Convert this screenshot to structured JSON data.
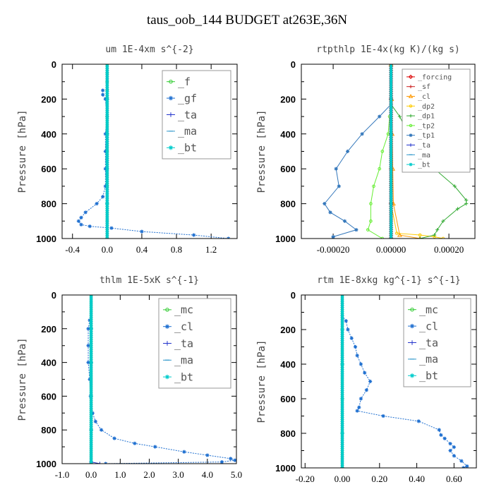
{
  "title": "taus_oob_144  BUDGET at263E,36N",
  "chart_data": [
    {
      "type": "line",
      "title": "um   1E-4xm s^{-2}",
      "ylabel": "Pressure [hPa]",
      "ylim": [
        1000,
        0
      ],
      "yticks": [
        0,
        200,
        400,
        600,
        800,
        1000
      ],
      "xlim": [
        -0.52,
        1.5
      ],
      "xticks": [
        -0.4,
        0.0,
        0.4,
        0.8,
        1.2
      ],
      "xtick_labels": [
        "-0.4",
        "0.0",
        "0.4",
        "0.8",
        "1.2"
      ],
      "legend": "top-right",
      "series": [
        {
          "name": "_f",
          "color": "#33cc33",
          "marker": "circle",
          "p": [
            0,
            50,
            100,
            150,
            200,
            300,
            400,
            500,
            600,
            700,
            800,
            900,
            1000
          ],
          "values": [
            0,
            0,
            0,
            0,
            0,
            0,
            0,
            0,
            0,
            0,
            0,
            0,
            0
          ]
        },
        {
          "name": "_gf",
          "color": "#1e6fd0",
          "marker": "star",
          "p": [
            150,
            175,
            200,
            300,
            400,
            500,
            600,
            700,
            760,
            800,
            850,
            880,
            900,
            920,
            930,
            940,
            960,
            980,
            1000
          ],
          "values": [
            -0.05,
            -0.05,
            -0.02,
            0,
            -0.02,
            -0.02,
            -0.02,
            -0.02,
            -0.05,
            -0.12,
            -0.25,
            -0.3,
            -0.33,
            -0.3,
            -0.2,
            0.05,
            0.4,
            1.0,
            1.4
          ]
        },
        {
          "name": "_ta",
          "color": "#2233cc",
          "marker": "plus",
          "p": [
            0,
            200,
            400,
            600,
            800,
            1000
          ],
          "values": [
            0,
            0,
            0,
            0,
            0,
            0
          ]
        },
        {
          "name": "_ma",
          "color": "#3399cc",
          "marker": "dash",
          "p": [
            0,
            200,
            400,
            600,
            800,
            1000
          ],
          "values": [
            0,
            0,
            0,
            0,
            0,
            0
          ]
        },
        {
          "name": "_bt",
          "color": "#00cccc",
          "marker": "star",
          "p": [
            0,
            200,
            400,
            600,
            800,
            1000
          ],
          "values": [
            0,
            0,
            0,
            0,
            0,
            0
          ]
        }
      ]
    },
    {
      "type": "line",
      "title": "rtpthlp  1E-4x(kg K)/(kg s)",
      "ylabel": "Pressure [hPa]",
      "ylim": [
        1000,
        0
      ],
      "yticks": [
        0,
        200,
        400,
        600,
        800,
        1000
      ],
      "xlim": [
        -0.00031,
        0.00029
      ],
      "xticks": [
        -0.0002,
        0.0,
        0.0002
      ],
      "xtick_labels": [
        "-0.00020",
        "0.00000",
        "0.00020"
      ],
      "legend": "top-right",
      "series": [
        {
          "name": "_forcing",
          "color": "#dd0000",
          "marker": "diamond",
          "p": [
            0,
            200,
            400,
            600,
            800,
            1000
          ],
          "values": [
            0,
            0,
            0,
            0,
            0,
            0
          ]
        },
        {
          "name": "_sf",
          "color": "#cc2222",
          "marker": "plus",
          "p": [
            0,
            200,
            400,
            600,
            800,
            1000
          ],
          "values": [
            0,
            0,
            0,
            0,
            0,
            0
          ]
        },
        {
          "name": "_cl",
          "color": "#ff9900",
          "marker": "triangle",
          "p": [
            0,
            200,
            400,
            600,
            800,
            980,
            1000
          ],
          "values": [
            0,
            2e-06,
            4e-06,
            6e-06,
            8e-06,
            3e-05,
            0.0001
          ]
        },
        {
          "name": "_dp2",
          "color": "#ffcc00",
          "marker": "circle",
          "p": [
            0,
            200,
            400,
            600,
            800,
            970,
            980,
            990,
            1000
          ],
          "values": [
            0,
            0,
            0,
            0,
            0,
            2e-05,
            0.0001,
            0.00015,
            0.00018
          ]
        },
        {
          "name": "_dp1",
          "color": "#33aa33",
          "marker": "plus",
          "p": [
            230,
            300,
            400,
            500,
            600,
            700,
            780,
            800,
            830,
            900,
            950,
            980,
            1000
          ],
          "values": [
            0,
            3e-05,
            6e-05,
            0.0001,
            0.00015,
            0.00022,
            0.00026,
            0.00026,
            0.00023,
            0.00018,
            0.00016,
            0.00015,
            0.0001
          ]
        },
        {
          "name": "_tp2",
          "color": "#66ee33",
          "marker": "circle",
          "p": [
            300,
            400,
            500,
            600,
            700,
            800,
            900,
            950,
            1000
          ],
          "values": [
            -5e-06,
            -1e-05,
            -3e-05,
            -4e-05,
            -6e-05,
            -7e-05,
            -7e-05,
            -8e-05,
            -3e-05
          ]
        },
        {
          "name": "_tp1",
          "color": "#3377bb",
          "marker": "star",
          "p": [
            230,
            300,
            400,
            500,
            600,
            700,
            800,
            850,
            900,
            950,
            990,
            1000
          ],
          "values": [
            0,
            -4e-05,
            -0.0001,
            -0.00015,
            -0.00019,
            -0.00018,
            -0.00023,
            -0.00021,
            -0.00016,
            -0.00012,
            -0.0002,
            -0.0002
          ]
        },
        {
          "name": "_ta",
          "color": "#2233cc",
          "marker": "plus",
          "p": [
            0,
            200,
            400,
            600,
            800,
            1000
          ],
          "values": [
            0,
            0,
            0,
            0,
            0,
            0
          ]
        },
        {
          "name": "_ma",
          "color": "#3399cc",
          "marker": "dash",
          "p": [
            0,
            200,
            400,
            600,
            800,
            1000
          ],
          "values": [
            0,
            0,
            0,
            0,
            0,
            0
          ]
        },
        {
          "name": "_bt",
          "color": "#00cccc",
          "marker": "star",
          "p": [
            0,
            200,
            400,
            600,
            800,
            1000
          ],
          "values": [
            0,
            0,
            0,
            0,
            0,
            0
          ]
        }
      ]
    },
    {
      "type": "line",
      "title": "thlm  1E-5xK s^{-1}",
      "ylabel": "Pressure [hPa]",
      "ylim": [
        1000,
        0
      ],
      "yticks": [
        0,
        200,
        400,
        600,
        800,
        1000
      ],
      "xlim": [
        -1.0,
        5.0
      ],
      "xticks": [
        -1.0,
        0.0,
        1.0,
        2.0,
        3.0,
        4.0,
        5.0
      ],
      "xtick_labels": [
        "-1.0",
        "0.0",
        "1.0",
        "2.0",
        "3.0",
        "4.0",
        "5.0"
      ],
      "legend": "top-right",
      "series": [
        {
          "name": "_mc",
          "color": "#33cc33",
          "marker": "circle",
          "p": [
            0,
            200,
            400,
            600,
            800,
            1000
          ],
          "values": [
            0,
            0,
            0,
            0,
            0,
            0
          ]
        },
        {
          "name": "_cl",
          "color": "#1e6fd0",
          "marker": "star",
          "p": [
            150,
            200,
            300,
            400,
            500,
            600,
            700,
            750,
            800,
            850,
            880,
            900,
            930,
            950,
            970,
            980,
            990,
            1000
          ],
          "values": [
            -0.05,
            -0.1,
            -0.1,
            -0.1,
            -0.05,
            -0.02,
            0.05,
            0.15,
            0.35,
            0.8,
            1.5,
            2.2,
            3.2,
            4.0,
            4.8,
            4.95,
            4.5,
            0.5
          ]
        },
        {
          "name": "_ta",
          "color": "#2233cc",
          "marker": "plus",
          "p": [
            0,
            200,
            400,
            600,
            800,
            990,
            1000
          ],
          "values": [
            0,
            0,
            0,
            0,
            0,
            0,
            0.3
          ]
        },
        {
          "name": "_ma",
          "color": "#3399cc",
          "marker": "dash",
          "p": [
            0,
            200,
            400,
            600,
            800,
            1000
          ],
          "values": [
            0,
            0,
            0,
            0,
            0,
            0
          ]
        },
        {
          "name": "_bt",
          "color": "#00cccc",
          "marker": "star",
          "p": [
            0,
            200,
            400,
            600,
            800,
            1000
          ],
          "values": [
            0,
            0,
            0,
            0,
            0,
            0
          ]
        }
      ]
    },
    {
      "type": "line",
      "title": "rtm  1E-8xkg kg^{-1} s^{-1}",
      "ylabel": "Pressure [hPa]",
      "ylim": [
        1000,
        0
      ],
      "yticks": [
        0,
        200,
        400,
        600,
        800,
        1000
      ],
      "xlim": [
        -0.22,
        0.72
      ],
      "xticks": [
        -0.2,
        0.0,
        0.2,
        0.4,
        0.6
      ],
      "xtick_labels": [
        "-0.20",
        "0.00",
        "0.20",
        "0.40",
        "0.60"
      ],
      "legend": "top-right",
      "series": [
        {
          "name": "_mc",
          "color": "#33cc33",
          "marker": "circle",
          "p": [
            0,
            200,
            400,
            600,
            800,
            1000
          ],
          "values": [
            0,
            0,
            0,
            0,
            0,
            0
          ]
        },
        {
          "name": "_cl",
          "color": "#1e6fd0",
          "marker": "star",
          "p": [
            120,
            150,
            200,
            250,
            300,
            350,
            400,
            450,
            500,
            550,
            600,
            650,
            670,
            700,
            730,
            780,
            810,
            830,
            860,
            880,
            900,
            930,
            960,
            990,
            1000
          ],
          "values": [
            0,
            0.02,
            0.03,
            0.05,
            0.07,
            0.08,
            0.1,
            0.12,
            0.15,
            0.13,
            0.1,
            0.09,
            0.08,
            0.22,
            0.41,
            0.52,
            0.53,
            0.55,
            0.58,
            0.6,
            0.58,
            0.6,
            0.64,
            0.67,
            0.65
          ]
        },
        {
          "name": "_ta",
          "color": "#2233cc",
          "marker": "plus",
          "p": [
            0,
            200,
            400,
            600,
            800,
            1000
          ],
          "values": [
            0,
            0,
            0,
            0,
            0,
            0
          ]
        },
        {
          "name": "_ma",
          "color": "#3399cc",
          "marker": "dash",
          "p": [
            0,
            200,
            400,
            600,
            800,
            1000
          ],
          "values": [
            0,
            0,
            0,
            0,
            0,
            0
          ]
        },
        {
          "name": "_bt",
          "color": "#00cccc",
          "marker": "star",
          "p": [
            0,
            200,
            400,
            600,
            800,
            1000
          ],
          "values": [
            0,
            0,
            0,
            0,
            0,
            0
          ]
        }
      ]
    }
  ]
}
